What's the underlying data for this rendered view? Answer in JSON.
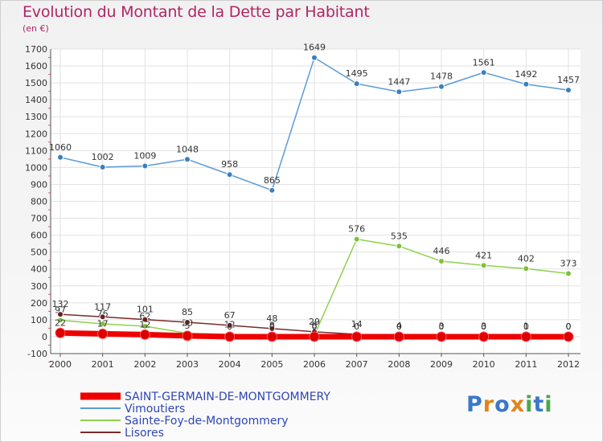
{
  "header": {
    "title": "Evolution du Montant de la Dette par Habitant",
    "subtitle": "(en €)"
  },
  "logo": {
    "letters": [
      {
        "ch": "P",
        "color": "#3a78c8"
      },
      {
        "ch": "r",
        "color": "#e0841b"
      },
      {
        "ch": "o",
        "color": "#3a78c8"
      },
      {
        "ch": "x",
        "color": "#e0841b"
      },
      {
        "ch": "i",
        "color": "#4aa84a"
      },
      {
        "ch": "t",
        "color": "#3a78c8"
      },
      {
        "ch": "i",
        "color": "#4aa84a"
      }
    ]
  },
  "chart_data": {
    "type": "line",
    "x": [
      "2000",
      "2001",
      "2002",
      "2003",
      "2004",
      "2005",
      "2006",
      "2007",
      "2008",
      "2009",
      "2010",
      "2011",
      "2012"
    ],
    "ylim": [
      -100,
      1700
    ],
    "yticks": [
      "-100",
      "0",
      "100",
      "200",
      "300",
      "400",
      "500",
      "600",
      "700",
      "800",
      "900",
      "1000",
      "1100",
      "1200",
      "1300",
      "1400",
      "1500",
      "1600",
      "1700"
    ],
    "grid": true,
    "legend_position": "bottom-left",
    "series": [
      {
        "name": "Vimoutiers",
        "color": "#5b9bd5",
        "marker_color": "#3a7fc1",
        "values": [
          1060,
          1002,
          1009,
          1048,
          958,
          865,
          1649,
          1495,
          1447,
          1478,
          1561,
          1492,
          1457
        ],
        "labels": [
          "1060",
          "1002",
          "1009",
          "1048",
          "958",
          "865",
          "1649",
          "1495",
          "1447",
          "1478",
          "1561",
          "1492",
          "1457"
        ]
      },
      {
        "name": "Sainte-Foy-de-Montgommery",
        "color": "#8fd14f",
        "marker_color": "#7cc23a",
        "values": [
          97,
          76,
          62,
          20,
          12,
          8,
          8,
          576,
          535,
          446,
          421,
          402,
          373
        ],
        "labels": [
          "97",
          "76",
          "62",
          "20",
          "12",
          "8",
          "8",
          "576",
          "535",
          "446",
          "421",
          "402",
          "373"
        ]
      },
      {
        "name": "Lisores",
        "color": "#7a2a2a",
        "marker_color": "#6a1f1f",
        "values": [
          132,
          117,
          101,
          85,
          67,
          48,
          29,
          14,
          4,
          3,
          3,
          1,
          0
        ],
        "labels": [
          "132",
          "117",
          "101",
          "85",
          "67",
          "48",
          "29",
          "14",
          "4",
          "3",
          "3",
          "1",
          "0"
        ]
      },
      {
        "name": "SAINT-GERMAIN-DE-MONTGOMMERY",
        "color": "#ee0000",
        "marker_color": "#dd0000",
        "thick": true,
        "values": [
          22,
          17,
          12,
          5,
          0,
          0,
          0,
          0,
          0,
          0,
          0,
          0,
          0
        ],
        "labels": [
          "22",
          "17",
          "12",
          "5",
          "0",
          "0",
          "0",
          "0",
          "0",
          "0",
          "0",
          "0",
          "0"
        ]
      }
    ],
    "legend": [
      {
        "name": "SAINT-GERMAIN-DE-MONTGOMMERY",
        "color": "#ee0000",
        "thick": true
      },
      {
        "name": "Vimoutiers",
        "color": "#5b9bd5"
      },
      {
        "name": "Sainte-Foy-de-Montgommery",
        "color": "#8fd14f"
      },
      {
        "name": "Lisores",
        "color": "#7a2a2a"
      }
    ]
  }
}
